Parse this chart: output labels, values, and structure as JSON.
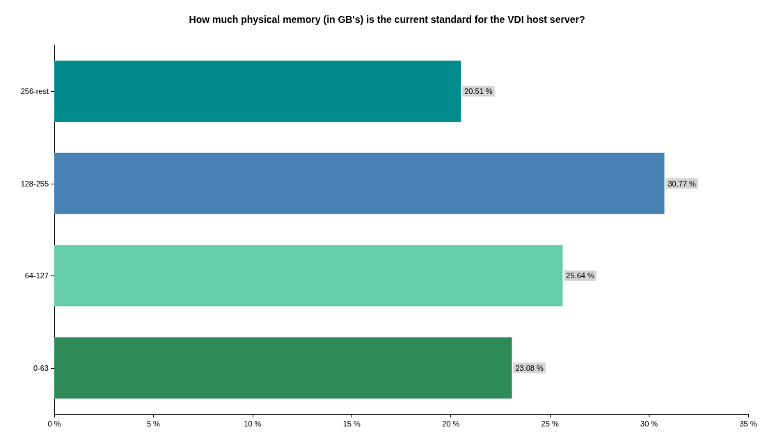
{
  "chart_data": {
    "type": "bar",
    "orientation": "horizontal",
    "title": "How much physical memory (in GB's) is the current standard for the VDI host server?",
    "categories": [
      "256-rest",
      "128-255",
      "64-127",
      "0-63"
    ],
    "values": [
      20.51,
      30.77,
      25.64,
      23.08
    ],
    "colors": [
      "#008b8b",
      "#4682b4",
      "#66cdaa",
      "#2e8b57"
    ],
    "value_labels": [
      "20.51 %",
      "30.77 %",
      "25.64 %",
      "23.08 %"
    ],
    "xlim": [
      0,
      35
    ],
    "xticks": [
      {
        "value": 0,
        "label": "0 %"
      },
      {
        "value": 5,
        "label": "5 %"
      },
      {
        "value": 10,
        "label": "10 %"
      },
      {
        "value": 15,
        "label": "15 %"
      },
      {
        "value": 20,
        "label": "20 %"
      },
      {
        "value": 25,
        "label": "25 %"
      },
      {
        "value": 30,
        "label": "30 %"
      },
      {
        "value": 35,
        "label": "35 %"
      }
    ],
    "grid": false
  }
}
